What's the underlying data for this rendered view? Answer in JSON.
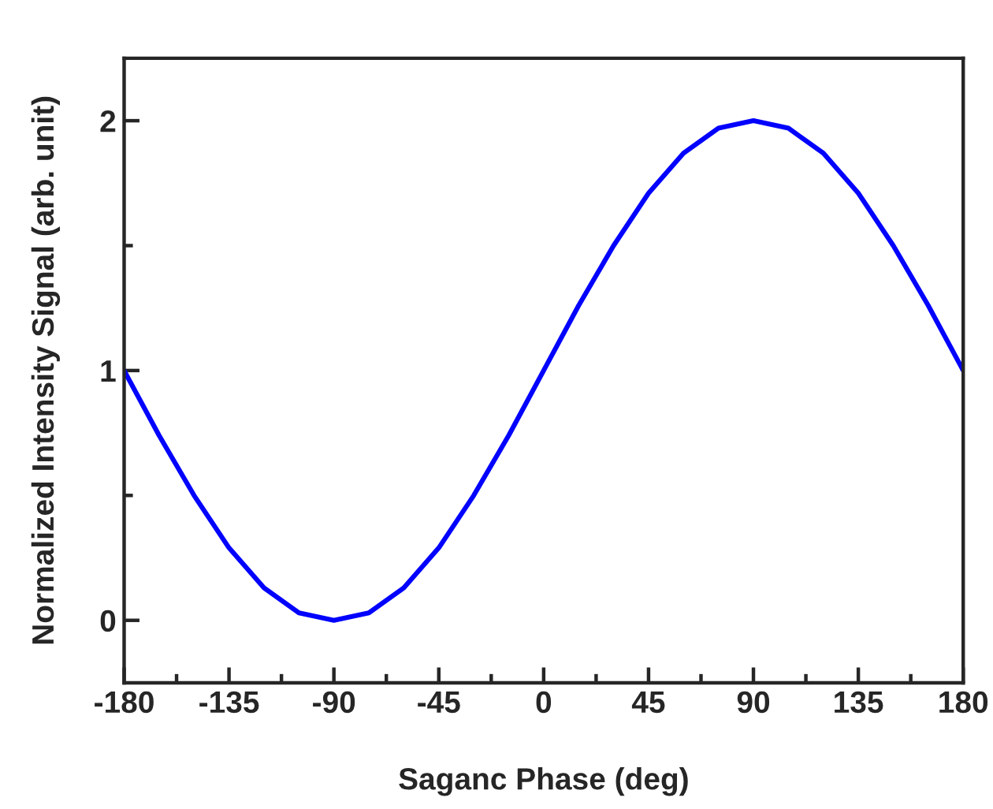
{
  "chart_data": {
    "type": "line",
    "xlabel": "Saganc Phase (deg)",
    "ylabel": "Normalized Intensity Signal (arb. unit)",
    "x": [
      -180,
      -165,
      -150,
      -135,
      -120,
      -105,
      -90,
      -75,
      -60,
      -45,
      -30,
      -15,
      0,
      15,
      30,
      45,
      60,
      75,
      90,
      105,
      120,
      135,
      150,
      165,
      180
    ],
    "series": [
      {
        "color": "#0000ff",
        "values": [
          1.0,
          0.74,
          0.5,
          0.29,
          0.13,
          0.03,
          0.0,
          0.03,
          0.13,
          0.29,
          0.5,
          0.74,
          1.0,
          1.26,
          1.5,
          1.71,
          1.87,
          1.97,
          2.0,
          1.97,
          1.87,
          1.71,
          1.5,
          1.26,
          1.0
        ]
      }
    ],
    "xlim": [
      -180,
      180
    ],
    "xticks": [
      -180,
      -135,
      -90,
      -45,
      0,
      45,
      90,
      135,
      180
    ],
    "ylim": [
      -0.25,
      2.25
    ],
    "yticks": [
      0,
      1,
      2
    ],
    "grid": false,
    "legend": false,
    "marker": "none",
    "line_style": "solid"
  }
}
